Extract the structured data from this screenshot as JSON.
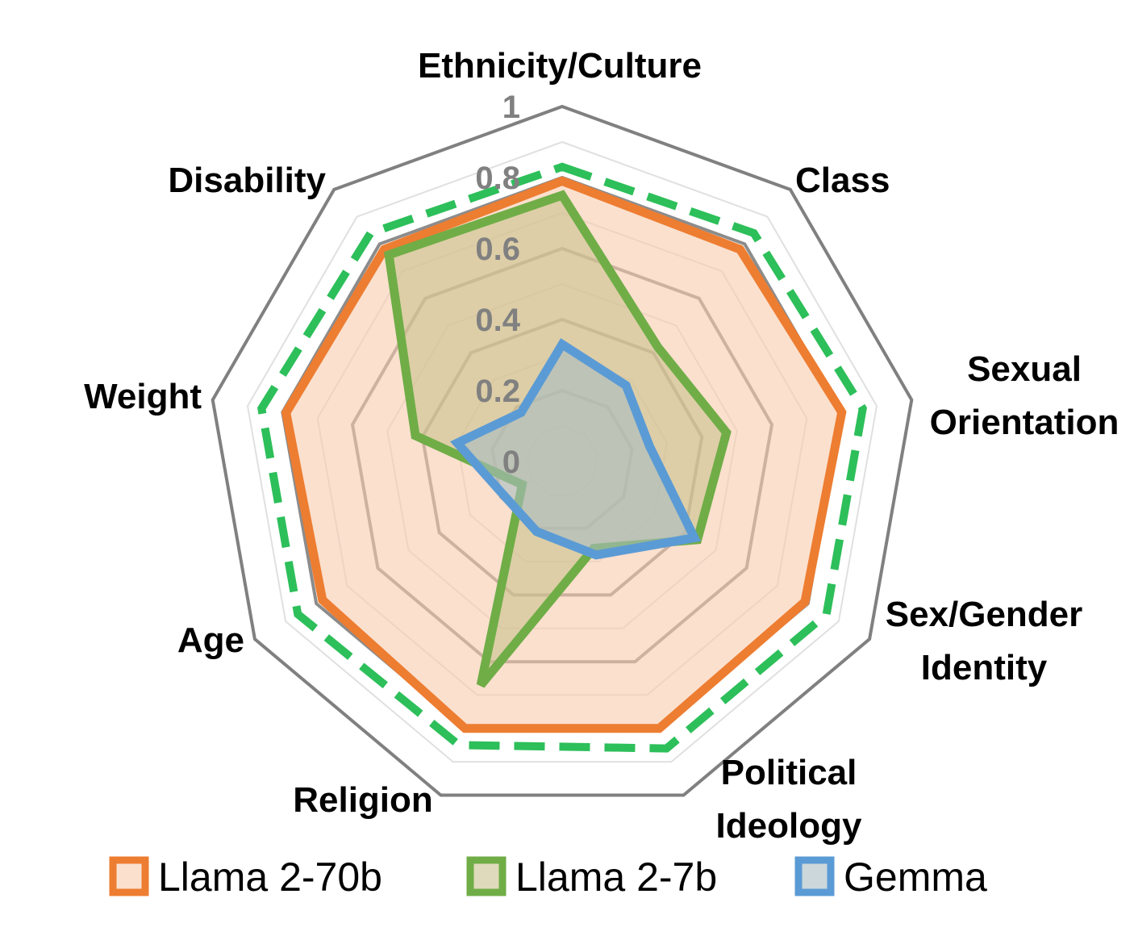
{
  "chart_data": {
    "type": "radar",
    "title": "",
    "categories": [
      [
        "Ethnicity/Culture"
      ],
      [
        "Class"
      ],
      [
        "Sexual",
        "Orientation"
      ],
      [
        "Sex/Gender",
        "Identity"
      ],
      [
        "Political",
        "Ideology"
      ],
      [
        "Religion"
      ],
      [
        "Age"
      ],
      [
        "Weight"
      ],
      [
        "Disability"
      ]
    ],
    "range": [
      0,
      1
    ],
    "ticks": [
      "0",
      "0.2",
      "0.4",
      "0.6",
      "0.8",
      "1"
    ],
    "tick_values": [
      0,
      0.2,
      0.4,
      0.6,
      0.8,
      1
    ],
    "minor_ticks": [
      0.1,
      0.3,
      0.5,
      0.7,
      0.9
    ],
    "series": [
      {
        "name": "Llama 2-70b",
        "color": "#ED7D31",
        "fill": "#F8CBAD",
        "values": [
          0.79,
          0.78,
          0.8,
          0.79,
          0.8,
          0.8,
          0.78,
          0.79,
          0.78
        ]
      },
      {
        "name": "Llama 2-7b",
        "color": "#70AD47",
        "fill": "#C9C28E",
        "values": [
          0.75,
          0.42,
          0.47,
          0.44,
          0.26,
          0.67,
          0.13,
          0.42,
          0.76
        ]
      },
      {
        "name": "Gemma",
        "color": "#5B9BD5",
        "fill": "#A8BDC2",
        "values": [
          0.33,
          0.28,
          0.25,
          0.43,
          0.28,
          0.21,
          0.19,
          0.3,
          0.18
        ]
      },
      {
        "name": "",
        "legend": false,
        "color": "#2DBF5A",
        "dashed": true,
        "values": [
          0.83,
          0.84,
          0.86,
          0.86,
          0.86,
          0.85,
          0.86,
          0.86,
          0.84
        ]
      }
    ]
  }
}
